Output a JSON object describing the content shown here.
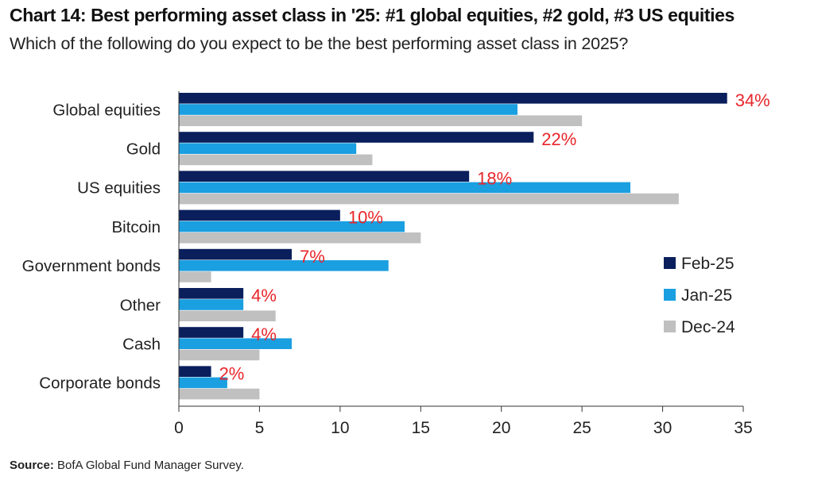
{
  "header": {
    "title": "Chart 14: Best performing asset class in '25: #1 global equities, #2 gold, #3 US equities",
    "subtitle": "Which of the following do you expect to be the best performing asset class in 2025?"
  },
  "footer": {
    "source_label": "Source:",
    "source_text": "BofA Global Fund Manager Survey."
  },
  "chart_data": {
    "type": "bar",
    "orientation": "horizontal",
    "categories": [
      "Global equities",
      "Gold",
      "US equities",
      "Bitcoin",
      "Government bonds",
      "Other",
      "Cash",
      "Corporate bonds"
    ],
    "series": [
      {
        "name": "Feb-25",
        "color": "#0a1f5c",
        "values": [
          34,
          22,
          18,
          10,
          7,
          4,
          4,
          2
        ]
      },
      {
        "name": "Jan-25",
        "color": "#1a9fe0",
        "values": [
          21,
          11,
          28,
          14,
          13,
          4,
          7,
          3
        ]
      },
      {
        "name": "Dec-24",
        "color": "#c0c0c0",
        "values": [
          25,
          12,
          31,
          15,
          2,
          6,
          5,
          5
        ]
      }
    ],
    "data_labels": [
      "34%",
      "22%",
      "18%",
      "10%",
      "7%",
      "4%",
      "4%",
      "2%"
    ],
    "data_label_color": "#e8262b",
    "xlim": [
      0,
      35
    ],
    "xticks": [
      0,
      5,
      10,
      15,
      20,
      25,
      30,
      35
    ],
    "xlabel": "",
    "ylabel": "",
    "grid": false,
    "legend_position": "right"
  }
}
